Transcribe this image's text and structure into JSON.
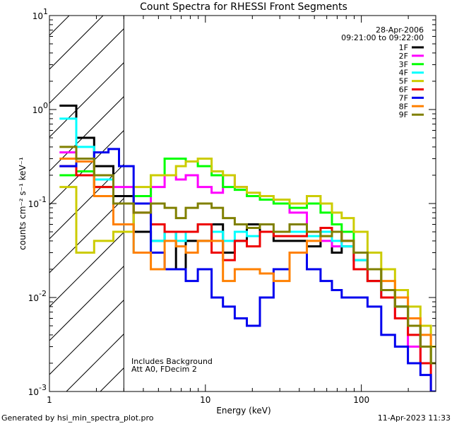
{
  "chart_data": {
    "type": "line",
    "title": "Count Spectra for RHESSI Front Segments",
    "xlabel": "Energy (keV)",
    "ylabel": "counts cm⁻² s⁻¹ keV⁻¹",
    "xscale": "log",
    "yscale": "log",
    "xlim": [
      1,
      300
    ],
    "ylim": [
      0.001,
      10
    ],
    "x_ticks": [
      {
        "v": 1,
        "label": "1"
      },
      {
        "v": 10,
        "label": "10"
      },
      {
        "v": 100,
        "label": "100"
      }
    ],
    "y_ticks": [
      {
        "v": 10,
        "base": "10",
        "exp": "1"
      },
      {
        "v": 1,
        "base": "10",
        "exp": "0"
      },
      {
        "v": 0.1,
        "base": "10",
        "exp": "-1"
      },
      {
        "v": 0.01,
        "base": "10",
        "exp": "-2"
      },
      {
        "v": 0.001,
        "base": "10",
        "exp": "-3"
      }
    ],
    "hatched_region": {
      "x_from": 1,
      "x_to": 3
    },
    "date": "28-Apr-2006",
    "time_range": "09:21:00 to 09:22:00",
    "annotations": [
      "Includes Background",
      "Att A0, FDecim 2"
    ],
    "series": [
      {
        "name": "1F",
        "color": "#000000",
        "points": [
          [
            1.3,
            1.1
          ],
          [
            1.7,
            0.5
          ],
          [
            2.2,
            0.25
          ],
          [
            3,
            0.12
          ],
          [
            4,
            0.05
          ],
          [
            5,
            0.04
          ],
          [
            6,
            0.05
          ],
          [
            7,
            0.02
          ],
          [
            8,
            0.04
          ],
          [
            10,
            0.04
          ],
          [
            12,
            0.06
          ],
          [
            14,
            0.03
          ],
          [
            17,
            0.04
          ],
          [
            20,
            0.06
          ],
          [
            25,
            0.05
          ],
          [
            30,
            0.04
          ],
          [
            40,
            0.04
          ],
          [
            50,
            0.035
          ],
          [
            60,
            0.05
          ],
          [
            70,
            0.03
          ],
          [
            80,
            0.035
          ],
          [
            100,
            0.025
          ],
          [
            120,
            0.015
          ],
          [
            150,
            0.012
          ],
          [
            180,
            0.008
          ],
          [
            220,
            0.005
          ],
          [
            260,
            0.003
          ],
          [
            300,
            0.002
          ]
        ]
      },
      {
        "name": "2F",
        "color": "#ff00ff",
        "points": [
          [
            1.3,
            0.35
          ],
          [
            1.7,
            0.3
          ],
          [
            2.2,
            0.2
          ],
          [
            3,
            0.15
          ],
          [
            4,
            0.1
          ],
          [
            5,
            0.15
          ],
          [
            6,
            0.2
          ],
          [
            7,
            0.18
          ],
          [
            8,
            0.2
          ],
          [
            10,
            0.15
          ],
          [
            12,
            0.13
          ],
          [
            14,
            0.2
          ],
          [
            17,
            0.15
          ],
          [
            20,
            0.12
          ],
          [
            25,
            0.11
          ],
          [
            30,
            0.1
          ],
          [
            40,
            0.08
          ],
          [
            50,
            0.05
          ],
          [
            60,
            0.04
          ],
          [
            70,
            0.035
          ],
          [
            80,
            0.04
          ],
          [
            100,
            0.02
          ],
          [
            120,
            0.02
          ],
          [
            150,
            0.01
          ],
          [
            180,
            0.006
          ],
          [
            220,
            0.003
          ],
          [
            260,
            0.002
          ],
          [
            300,
            0.002
          ]
        ]
      },
      {
        "name": "3F",
        "color": "#00ff00",
        "points": [
          [
            1.3,
            0.2
          ],
          [
            1.7,
            0.22
          ],
          [
            2.2,
            0.15
          ],
          [
            3,
            0.1
          ],
          [
            4,
            0.12
          ],
          [
            5,
            0.2
          ],
          [
            6,
            0.3
          ],
          [
            7,
            0.3
          ],
          [
            8,
            0.28
          ],
          [
            10,
            0.25
          ],
          [
            12,
            0.2
          ],
          [
            14,
            0.15
          ],
          [
            17,
            0.14
          ],
          [
            20,
            0.12
          ],
          [
            25,
            0.11
          ],
          [
            30,
            0.1
          ],
          [
            40,
            0.09
          ],
          [
            50,
            0.1
          ],
          [
            60,
            0.08
          ],
          [
            70,
            0.06
          ],
          [
            80,
            0.05
          ],
          [
            100,
            0.03
          ],
          [
            120,
            0.02
          ],
          [
            150,
            0.012
          ],
          [
            180,
            0.008
          ],
          [
            220,
            0.005
          ],
          [
            260,
            0.003
          ],
          [
            300,
            0.002
          ]
        ]
      },
      {
        "name": "4F",
        "color": "#00ffff",
        "points": [
          [
            1.3,
            0.8
          ],
          [
            1.7,
            0.4
          ],
          [
            2.2,
            0.18
          ],
          [
            3,
            0.06
          ],
          [
            4,
            0.03
          ],
          [
            5,
            0.04
          ],
          [
            6,
            0.05
          ],
          [
            7,
            0.04
          ],
          [
            8,
            0.05
          ],
          [
            10,
            0.06
          ],
          [
            12,
            0.05
          ],
          [
            14,
            0.04
          ],
          [
            17,
            0.05
          ],
          [
            20,
            0.045
          ],
          [
            25,
            0.05
          ],
          [
            30,
            0.05
          ],
          [
            40,
            0.05
          ],
          [
            50,
            0.045
          ],
          [
            60,
            0.05
          ],
          [
            70,
            0.04
          ],
          [
            80,
            0.035
          ],
          [
            100,
            0.025
          ],
          [
            120,
            0.02
          ],
          [
            150,
            0.01
          ],
          [
            180,
            0.008
          ],
          [
            220,
            0.005
          ],
          [
            260,
            0.003
          ],
          [
            300,
            0.002
          ]
        ]
      },
      {
        "name": "5F",
        "color": "#cccc00",
        "points": [
          [
            1.3,
            0.15
          ],
          [
            1.7,
            0.03
          ],
          [
            2.2,
            0.04
          ],
          [
            3,
            0.05
          ],
          [
            4,
            0.15
          ],
          [
            5,
            0.2
          ],
          [
            6,
            0.2
          ],
          [
            7,
            0.25
          ],
          [
            8,
            0.28
          ],
          [
            10,
            0.3
          ],
          [
            12,
            0.22
          ],
          [
            14,
            0.2
          ],
          [
            17,
            0.15
          ],
          [
            20,
            0.13
          ],
          [
            25,
            0.12
          ],
          [
            30,
            0.11
          ],
          [
            40,
            0.1
          ],
          [
            50,
            0.12
          ],
          [
            60,
            0.1
          ],
          [
            70,
            0.08
          ],
          [
            80,
            0.07
          ],
          [
            100,
            0.05
          ],
          [
            120,
            0.03
          ],
          [
            150,
            0.02
          ],
          [
            180,
            0.012
          ],
          [
            220,
            0.008
          ],
          [
            260,
            0.005
          ],
          [
            300,
            0.003
          ]
        ]
      },
      {
        "name": "6F",
        "color": "#ee0000",
        "points": [
          [
            1.3,
            0.25
          ],
          [
            1.7,
            0.2
          ],
          [
            2.2,
            0.15
          ],
          [
            3,
            0.1
          ],
          [
            4,
            0.08
          ],
          [
            5,
            0.06
          ],
          [
            6,
            0.05
          ],
          [
            7,
            0.05
          ],
          [
            8,
            0.05
          ],
          [
            10,
            0.06
          ],
          [
            12,
            0.03
          ],
          [
            14,
            0.025
          ],
          [
            17,
            0.04
          ],
          [
            20,
            0.035
          ],
          [
            25,
            0.05
          ],
          [
            30,
            0.045
          ],
          [
            40,
            0.045
          ],
          [
            50,
            0.05
          ],
          [
            60,
            0.055
          ],
          [
            70,
            0.05
          ],
          [
            80,
            0.04
          ],
          [
            100,
            0.02
          ],
          [
            120,
            0.015
          ],
          [
            150,
            0.01
          ],
          [
            180,
            0.006
          ],
          [
            220,
            0.004
          ],
          [
            260,
            0.002
          ],
          [
            300,
            0.001
          ]
        ]
      },
      {
        "name": "7F",
        "color": "#0000ee",
        "points": [
          [
            1.3,
            0.25
          ],
          [
            1.7,
            0.3
          ],
          [
            2.2,
            0.35
          ],
          [
            2.6,
            0.38
          ],
          [
            3,
            0.25
          ],
          [
            4,
            0.1
          ],
          [
            5,
            0.03
          ],
          [
            6,
            0.02
          ],
          [
            7,
            0.02
          ],
          [
            8,
            0.015
          ],
          [
            10,
            0.02
          ],
          [
            12,
            0.01
          ],
          [
            14,
            0.008
          ],
          [
            17,
            0.006
          ],
          [
            20,
            0.005
          ],
          [
            25,
            0.01
          ],
          [
            30,
            0.02
          ],
          [
            40,
            0.03
          ],
          [
            50,
            0.02
          ],
          [
            60,
            0.015
          ],
          [
            70,
            0.012
          ],
          [
            80,
            0.01
          ],
          [
            100,
            0.01
          ],
          [
            120,
            0.008
          ],
          [
            150,
            0.004
          ],
          [
            180,
            0.003
          ],
          [
            220,
            0.002
          ],
          [
            260,
            0.0015
          ],
          [
            300,
            0.001
          ]
        ]
      },
      {
        "name": "8F",
        "color": "#ff8000",
        "points": [
          [
            1.3,
            0.3
          ],
          [
            1.7,
            0.28
          ],
          [
            2.2,
            0.12
          ],
          [
            3,
            0.06
          ],
          [
            4,
            0.03
          ],
          [
            5,
            0.02
          ],
          [
            6,
            0.04
          ],
          [
            7,
            0.035
          ],
          [
            8,
            0.03
          ],
          [
            10,
            0.04
          ],
          [
            12,
            0.04
          ],
          [
            14,
            0.015
          ],
          [
            17,
            0.02
          ],
          [
            20,
            0.02
          ],
          [
            25,
            0.018
          ],
          [
            30,
            0.015
          ],
          [
            40,
            0.03
          ],
          [
            50,
            0.04
          ],
          [
            60,
            0.045
          ],
          [
            70,
            0.05
          ],
          [
            80,
            0.04
          ],
          [
            100,
            0.03
          ],
          [
            120,
            0.02
          ],
          [
            150,
            0.015
          ],
          [
            180,
            0.01
          ],
          [
            220,
            0.006
          ],
          [
            260,
            0.004
          ],
          [
            300,
            0.002
          ]
        ]
      },
      {
        "name": "9F",
        "color": "#808000",
        "points": [
          [
            1.3,
            0.4
          ],
          [
            1.7,
            0.3
          ],
          [
            2.2,
            0.2
          ],
          [
            3,
            0.1
          ],
          [
            4,
            0.08
          ],
          [
            5,
            0.1
          ],
          [
            6,
            0.09
          ],
          [
            7,
            0.07
          ],
          [
            8,
            0.09
          ],
          [
            10,
            0.1
          ],
          [
            12,
            0.09
          ],
          [
            14,
            0.07
          ],
          [
            17,
            0.06
          ],
          [
            20,
            0.055
          ],
          [
            25,
            0.06
          ],
          [
            30,
            0.05
          ],
          [
            40,
            0.06
          ],
          [
            50,
            0.05
          ],
          [
            60,
            0.045
          ],
          [
            70,
            0.05
          ],
          [
            80,
            0.04
          ],
          [
            100,
            0.03
          ],
          [
            120,
            0.02
          ],
          [
            150,
            0.012
          ],
          [
            180,
            0.008
          ],
          [
            220,
            0.005
          ],
          [
            260,
            0.003
          ],
          [
            300,
            0.002
          ]
        ]
      }
    ]
  },
  "footer": {
    "generated_by": "Generated by hsi_min_spectra_plot.pro",
    "timestamp": "11-Apr-2023 11:33"
  }
}
